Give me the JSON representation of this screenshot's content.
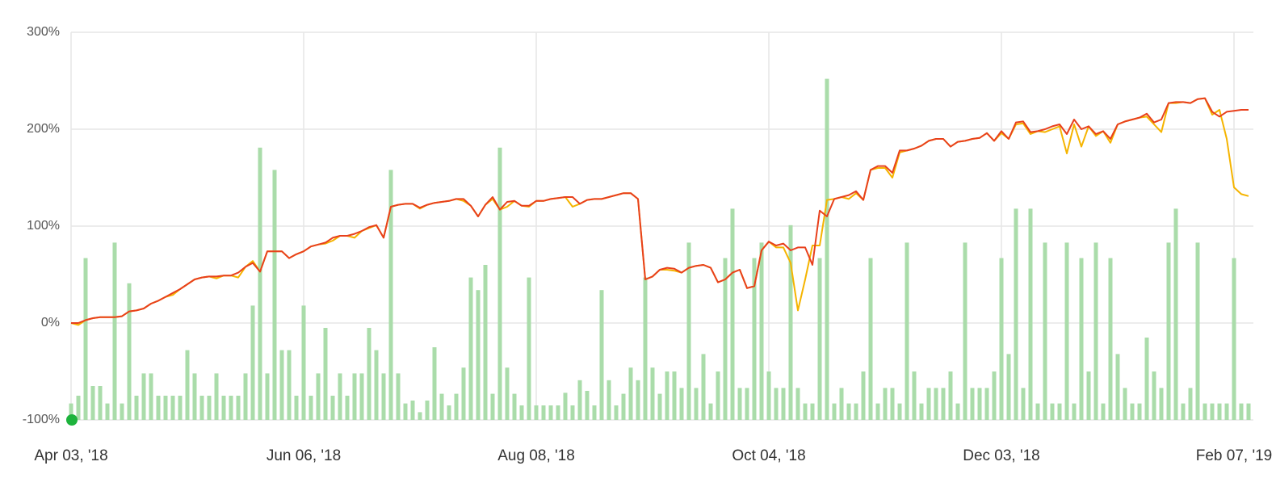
{
  "chart_data": {
    "type": "line",
    "xlim": [
      0,
      162
    ],
    "xticks": [
      {
        "value": 0,
        "label": "Apr 03, '18"
      },
      {
        "value": 32,
        "label": "Jun 06, '18"
      },
      {
        "value": 64,
        "label": "Aug 08, '18"
      },
      {
        "value": 96,
        "label": "Oct 04, '18"
      },
      {
        "value": 128,
        "label": "Dec 03, '18"
      },
      {
        "value": 160,
        "label": "Feb 07, '19"
      }
    ],
    "ylim": [
      -100,
      300
    ],
    "yticks": [
      {
        "value": -100,
        "label": "-100%"
      },
      {
        "value": 0,
        "label": "0%"
      },
      {
        "value": 100,
        "label": "100%"
      },
      {
        "value": 200,
        "label": "200%"
      },
      {
        "value": 300,
        "label": "300%"
      }
    ],
    "grid": true,
    "bars": {
      "color": "#aadcaa",
      "values": [
        -83,
        -75,
        67,
        -65,
        -65,
        -83,
        83,
        -83,
        41,
        -75,
        -52,
        -52,
        -75,
        -75,
        -75,
        -75,
        -28,
        -52,
        -75,
        -75,
        -52,
        -75,
        -75,
        -75,
        -52,
        18,
        181,
        -52,
        158,
        -28,
        -28,
        -75,
        18,
        -75,
        -52,
        -5,
        -75,
        -52,
        -75,
        -52,
        -52,
        -5,
        -28,
        -52,
        158,
        -52,
        -83,
        -80,
        -92,
        -80,
        -25,
        -73,
        -85,
        -73,
        -46,
        47,
        34,
        60,
        -73,
        181,
        -46,
        -73,
        -85,
        47,
        -85,
        -85,
        -85,
        -85,
        -72,
        -85,
        -59,
        -70,
        -85,
        34,
        -59,
        -85,
        -73,
        -46,
        -59,
        47,
        -46,
        -73,
        -50,
        -50,
        -67,
        83,
        -67,
        -32,
        -83,
        -50,
        67,
        118,
        -67,
        -67,
        67,
        83,
        -50,
        -67,
        -67,
        101,
        -67,
        -83,
        -83,
        67,
        252,
        -83,
        -67,
        -83,
        -83,
        -50,
        67,
        -83,
        -67,
        -67,
        -83,
        83,
        -50,
        -83,
        -67,
        -67,
        -67,
        -50,
        -83,
        83,
        -67,
        -67,
        -67,
        -50,
        67,
        -32,
        118,
        -67,
        118,
        -83,
        83,
        -83,
        -83,
        83,
        -83,
        67,
        -50,
        83,
        -83,
        67,
        -32,
        -67,
        -83,
        -83,
        -15,
        -50,
        -67,
        83,
        118,
        -83,
        -67,
        83,
        -83,
        -83,
        -83,
        -83,
        67,
        -83,
        -83
      ]
    },
    "series": [
      {
        "color": "#f5b400",
        "values": [
          0,
          -2,
          3,
          5,
          6,
          6,
          6,
          7,
          12,
          13,
          15,
          20,
          23,
          27,
          29,
          35,
          40,
          45,
          47,
          48,
          46,
          49,
          49,
          47,
          58,
          64,
          53,
          74,
          74,
          74,
          67,
          71,
          74,
          79,
          81,
          82,
          85,
          90,
          90,
          88,
          95,
          98,
          101,
          88,
          120,
          122,
          123,
          123,
          118,
          122,
          124,
          125,
          126,
          128,
          126,
          121,
          110,
          122,
          128,
          117,
          120,
          126,
          121,
          120,
          126,
          126,
          128,
          129,
          130,
          120,
          123,
          127,
          128,
          128,
          130,
          132,
          134,
          134,
          128,
          45,
          48,
          55,
          55,
          54,
          52,
          57,
          59,
          60,
          57,
          42,
          45,
          52,
          55,
          36,
          38,
          75,
          84,
          78,
          78,
          62,
          13,
          45,
          80,
          80,
          127,
          128,
          130,
          128,
          134,
          127,
          158,
          160,
          160,
          150,
          176,
          178,
          180,
          183,
          188,
          190,
          190,
          182,
          187,
          188,
          190,
          191,
          196,
          188,
          196,
          190,
          205,
          206,
          195,
          198,
          197,
          200,
          203,
          175,
          205,
          182,
          203,
          193,
          198,
          186,
          205,
          208,
          210,
          212,
          213,
          205,
          197,
          227,
          227,
          228,
          227,
          231,
          232,
          215,
          220,
          190,
          140,
          133,
          131
        ]
      },
      {
        "color": "#e8401c",
        "values": [
          0,
          0,
          3,
          5,
          6,
          6,
          6,
          7,
          12,
          13,
          15,
          20,
          23,
          27,
          31,
          35,
          40,
          45,
          47,
          48,
          48,
          49,
          49,
          52,
          58,
          62,
          53,
          74,
          74,
          74,
          67,
          71,
          74,
          79,
          81,
          83,
          88,
          90,
          90,
          92,
          95,
          99,
          101,
          88,
          120,
          122,
          123,
          123,
          119,
          122,
          124,
          125,
          126,
          128,
          128,
          121,
          110,
          122,
          130,
          117,
          125,
          126,
          121,
          121,
          126,
          126,
          128,
          129,
          130,
          130,
          123,
          127,
          128,
          128,
          130,
          132,
          134,
          134,
          128,
          45,
          48,
          55,
          57,
          56,
          52,
          57,
          59,
          60,
          57,
          42,
          45,
          52,
          55,
          36,
          38,
          75,
          84,
          80,
          82,
          75,
          78,
          78,
          60,
          116,
          110,
          128,
          130,
          132,
          136,
          127,
          158,
          162,
          162,
          155,
          178,
          178,
          180,
          183,
          188,
          190,
          190,
          182,
          187,
          188,
          190,
          191,
          196,
          188,
          198,
          190,
          207,
          208,
          197,
          198,
          200,
          203,
          205,
          195,
          210,
          200,
          203,
          195,
          198,
          190,
          205,
          208,
          210,
          212,
          216,
          207,
          210,
          227,
          228,
          228,
          227,
          231,
          232,
          218,
          213,
          218,
          219,
          220,
          220
        ]
      }
    ]
  }
}
